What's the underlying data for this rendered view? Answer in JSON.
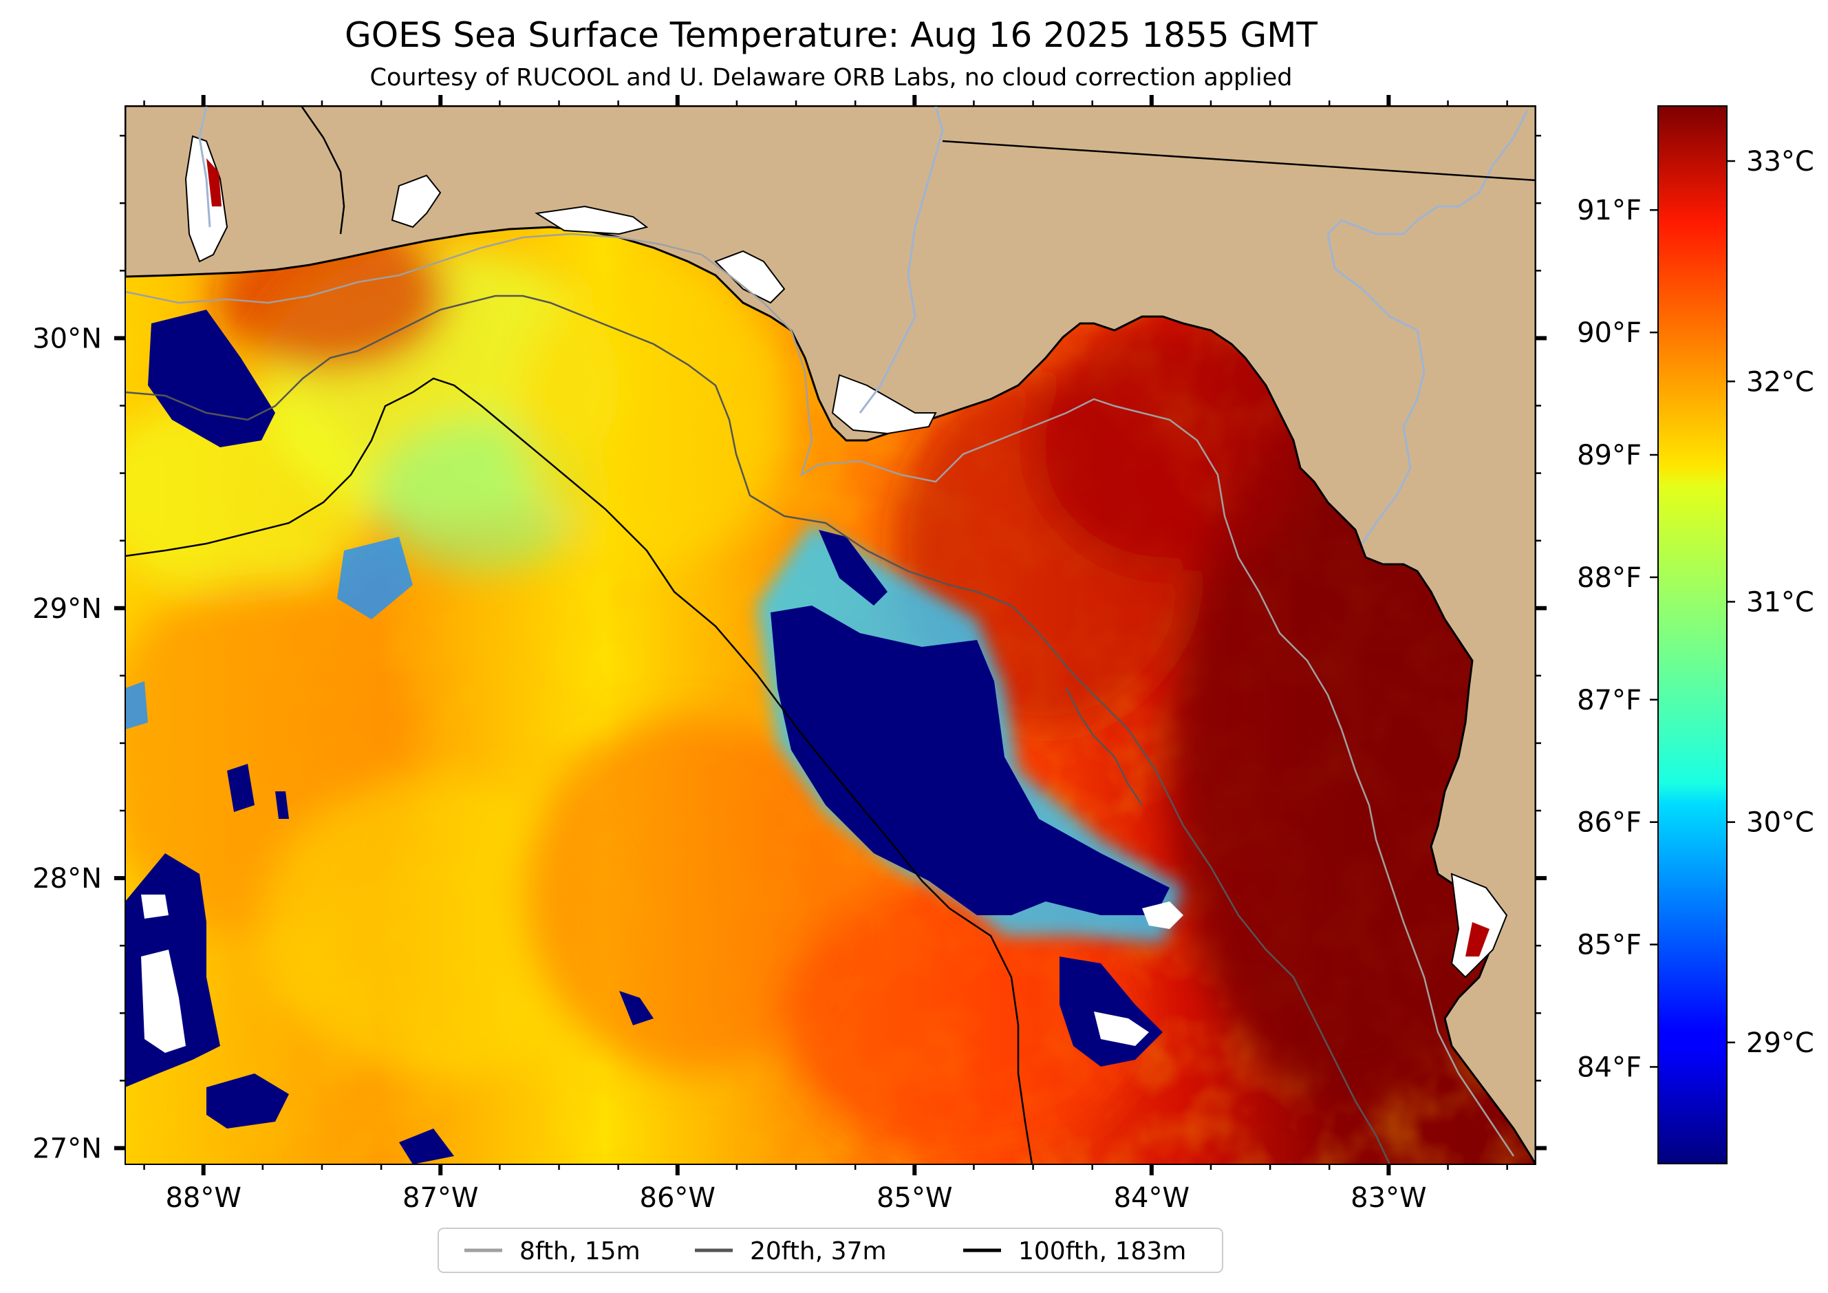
{
  "title": "GOES Sea Surface Temperature: Aug 16 2025 1855 GMT",
  "subtitle": "Courtesy of RUCOOL and U. Delaware ORB Labs, no cloud correction applied",
  "map": {
    "lon_range": [
      -88.33,
      -82.38
    ],
    "lat_range": [
      26.94,
      30.86
    ],
    "lon_ticks": [
      {
        "value": -88,
        "label": "88°W"
      },
      {
        "value": -87,
        "label": "87°W"
      },
      {
        "value": -86,
        "label": "86°W"
      },
      {
        "value": -85,
        "label": "85°W"
      },
      {
        "value": -84,
        "label": "84°W"
      },
      {
        "value": -83,
        "label": "83°W"
      }
    ],
    "lat_ticks": [
      {
        "value": 30,
        "label": "30°N"
      },
      {
        "value": 29,
        "label": "29°N"
      },
      {
        "value": 28,
        "label": "28°N"
      },
      {
        "value": 27,
        "label": "27°N"
      }
    ],
    "land_color": "#d2b48c"
  },
  "colorbar": {
    "celsius_range": [
      28.45,
      33.25
    ],
    "celsius_ticks": [
      {
        "value": 33,
        "label": "33°C"
      },
      {
        "value": 32,
        "label": "32°C"
      },
      {
        "value": 31,
        "label": "31°C"
      },
      {
        "value": 30,
        "label": "30°C"
      },
      {
        "value": 29,
        "label": "29°C"
      }
    ],
    "fahrenheit_ticks": [
      {
        "value": 91,
        "label": "91°F"
      },
      {
        "value": 90,
        "label": "90°F"
      },
      {
        "value": 89,
        "label": "89°F"
      },
      {
        "value": 88,
        "label": "88°F"
      },
      {
        "value": 87,
        "label": "87°F"
      },
      {
        "value": 86,
        "label": "86°F"
      },
      {
        "value": 85,
        "label": "85°F"
      },
      {
        "value": 84,
        "label": "84°F"
      }
    ],
    "colormap": "jet"
  },
  "legend": [
    {
      "label": "8fth, 15m",
      "color": "#a0a0a0"
    },
    {
      "label": "20fth, 37m",
      "color": "#555555"
    },
    {
      "label": "100fth, 183m",
      "color": "#000000"
    }
  ],
  "colors": {
    "shelf_8fth": "#a0a0a0",
    "shelf_20fth": "#555555",
    "shelf_100fth": "#000000",
    "river": "#9fb4d2"
  }
}
